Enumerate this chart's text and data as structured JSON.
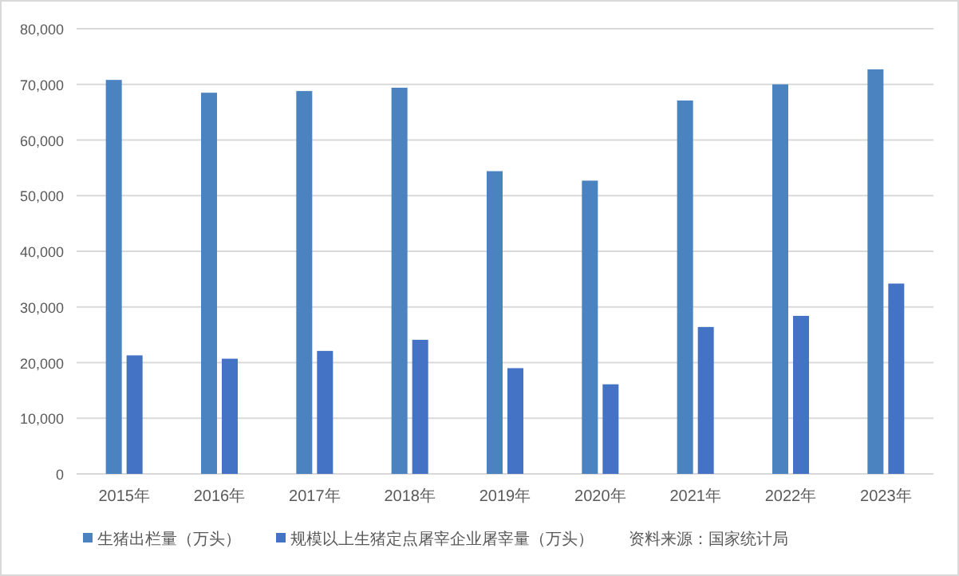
{
  "chart_data": {
    "type": "bar",
    "categories": [
      "2015年",
      "2016年",
      "2017年",
      "2018年",
      "2019年",
      "2020年",
      "2021年",
      "2022年",
      "2023年"
    ],
    "series": [
      {
        "name": "生猪出栏量（万头）",
        "color": "#4a83bf",
        "values": [
          70800,
          68500,
          68800,
          69400,
          54400,
          52700,
          67100,
          70000,
          72700
        ]
      },
      {
        "name": "规模以上生猪定点屠宰企业屠宰量（万头）",
        "color": "#4472c4",
        "values": [
          21300,
          20700,
          22100,
          24100,
          19000,
          16100,
          26400,
          28400,
          34200
        ]
      }
    ],
    "ylim": [
      0,
      80000
    ],
    "yticks": [
      {
        "value": 0,
        "label": "0"
      },
      {
        "value": 10000,
        "label": "10,000"
      },
      {
        "value": 20000,
        "label": "20,000"
      },
      {
        "value": 30000,
        "label": "30,000"
      },
      {
        "value": 40000,
        "label": "40,000"
      },
      {
        "value": 50000,
        "label": "50,000"
      },
      {
        "value": 60000,
        "label": "60,000"
      },
      {
        "value": 70000,
        "label": "70,000"
      },
      {
        "value": 80000,
        "label": "80,000"
      }
    ],
    "grid": "y",
    "legend": "bottom",
    "annotations": [
      "资料来源：国家统计局"
    ]
  }
}
